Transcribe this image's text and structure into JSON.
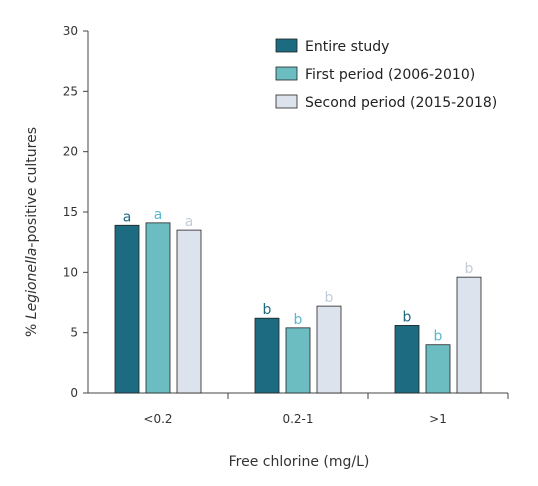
{
  "chart_data": {
    "type": "bar",
    "title": "",
    "xlabel": "Free chlorine (mg/L)",
    "ylabel_parts": [
      "% ",
      "Legionella",
      "-positive cultures"
    ],
    "ylim": [
      0,
      30
    ],
    "yticks": [
      0,
      5,
      10,
      15,
      20,
      25,
      30
    ],
    "categories": [
      "<0.2",
      "0.2-1",
      ">1"
    ],
    "legend_position": "top-right",
    "grid": false,
    "series": [
      {
        "name": "Entire study",
        "color": "#1c6b80",
        "label_color": "#1c6b80",
        "values": [
          13.9,
          6.2,
          5.6
        ],
        "labels": [
          "a",
          "b",
          "b"
        ]
      },
      {
        "name": "First period (2006-2010)",
        "color": "#6bbdc2",
        "label_color": "#5bb6cf",
        "values": [
          14.1,
          5.4,
          4.0
        ],
        "labels": [
          "a",
          "b",
          "b"
        ]
      },
      {
        "name": "Second period (2015-2018)",
        "color": "#dde3ec",
        "label_color": "#c3ccdb",
        "values": [
          13.5,
          7.2,
          9.6
        ],
        "labels": [
          "a",
          "b",
          "b"
        ]
      }
    ]
  }
}
